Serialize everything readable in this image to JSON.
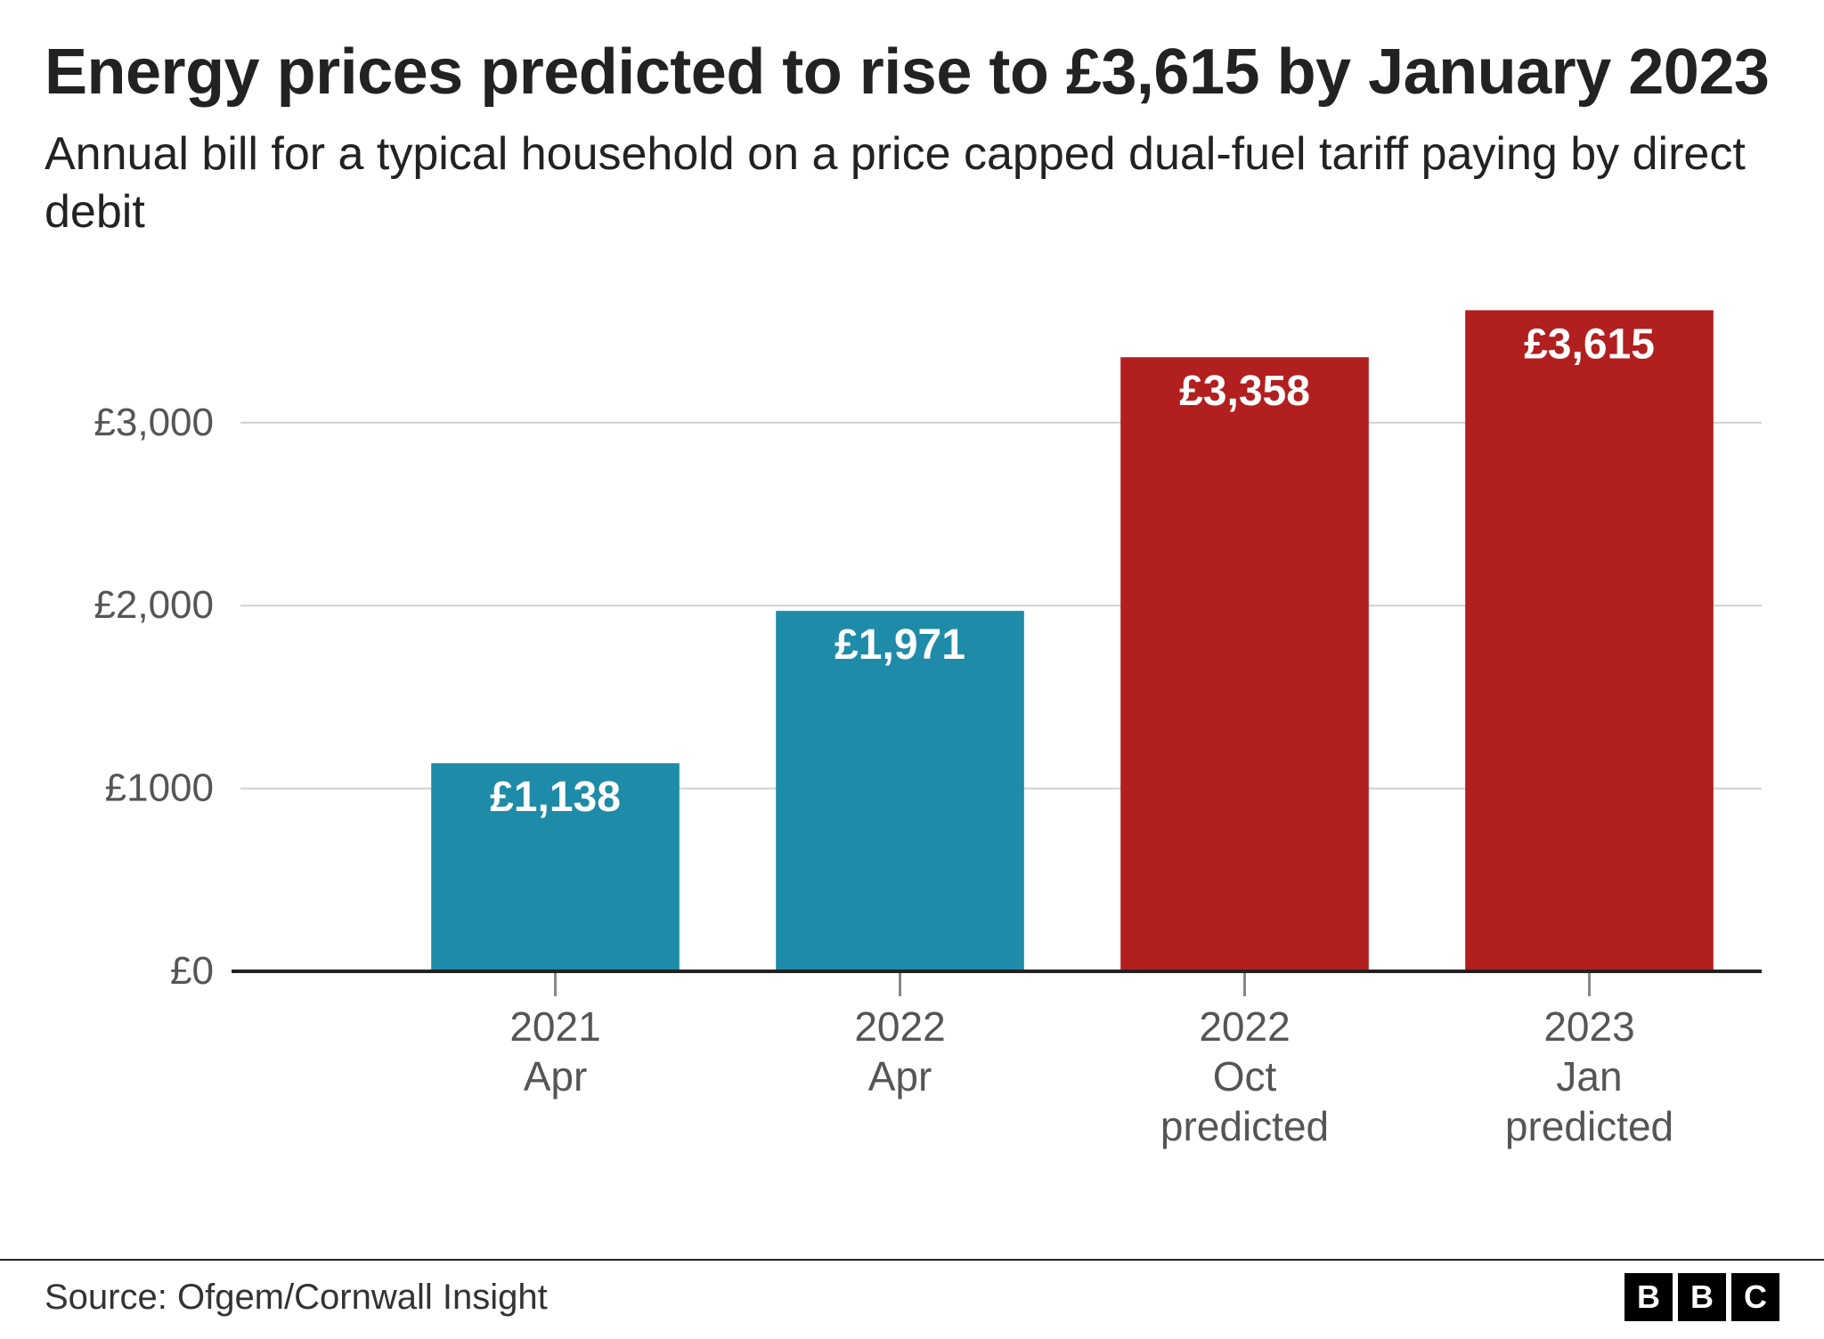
{
  "title": "Energy prices predicted to rise to £3,615 by January 2023",
  "subtitle": "Annual bill for a typical household on a price capped dual-fuel tariff paying by direct debit",
  "source": "Source: Ofgem/Cornwall Insight",
  "logo_letters": [
    "B",
    "B",
    "C"
  ],
  "chart": {
    "type": "bar",
    "background_color": "#ffffff",
    "grid_color": "#d0d0d0",
    "axis_color": "#222222",
    "tick_color": "#888888",
    "title_fontsize": 72,
    "subtitle_fontsize": 52,
    "axis_label_fontsize": 44,
    "bar_label_fontsize": 48,
    "category_label_fontsize": 46,
    "ylim": [
      0,
      3700
    ],
    "yticks": [
      0,
      1000,
      2000,
      3000
    ],
    "ytick_labels": [
      "£0",
      "£1000",
      "£2,000",
      "£3,000"
    ],
    "bar_width": 0.72,
    "categories": [
      {
        "line1": "2021",
        "line2": "Apr",
        "line3": ""
      },
      {
        "line1": "2022",
        "line2": "Apr",
        "line3": ""
      },
      {
        "line1": "2022",
        "line2": "Oct",
        "line3": "predicted"
      },
      {
        "line1": "2023",
        "line2": "Jan",
        "line3": "predicted"
      }
    ],
    "values": [
      1138,
      1971,
      3358,
      3615
    ],
    "value_labels": [
      "£1,138",
      "£1,971",
      "£3,358",
      "£3,615"
    ],
    "bar_colors": [
      "#1e8ba8",
      "#1e8ba8",
      "#b21f1f",
      "#b21f1f"
    ],
    "label_color": "#ffffff",
    "axis_text_color": "#555555"
  }
}
